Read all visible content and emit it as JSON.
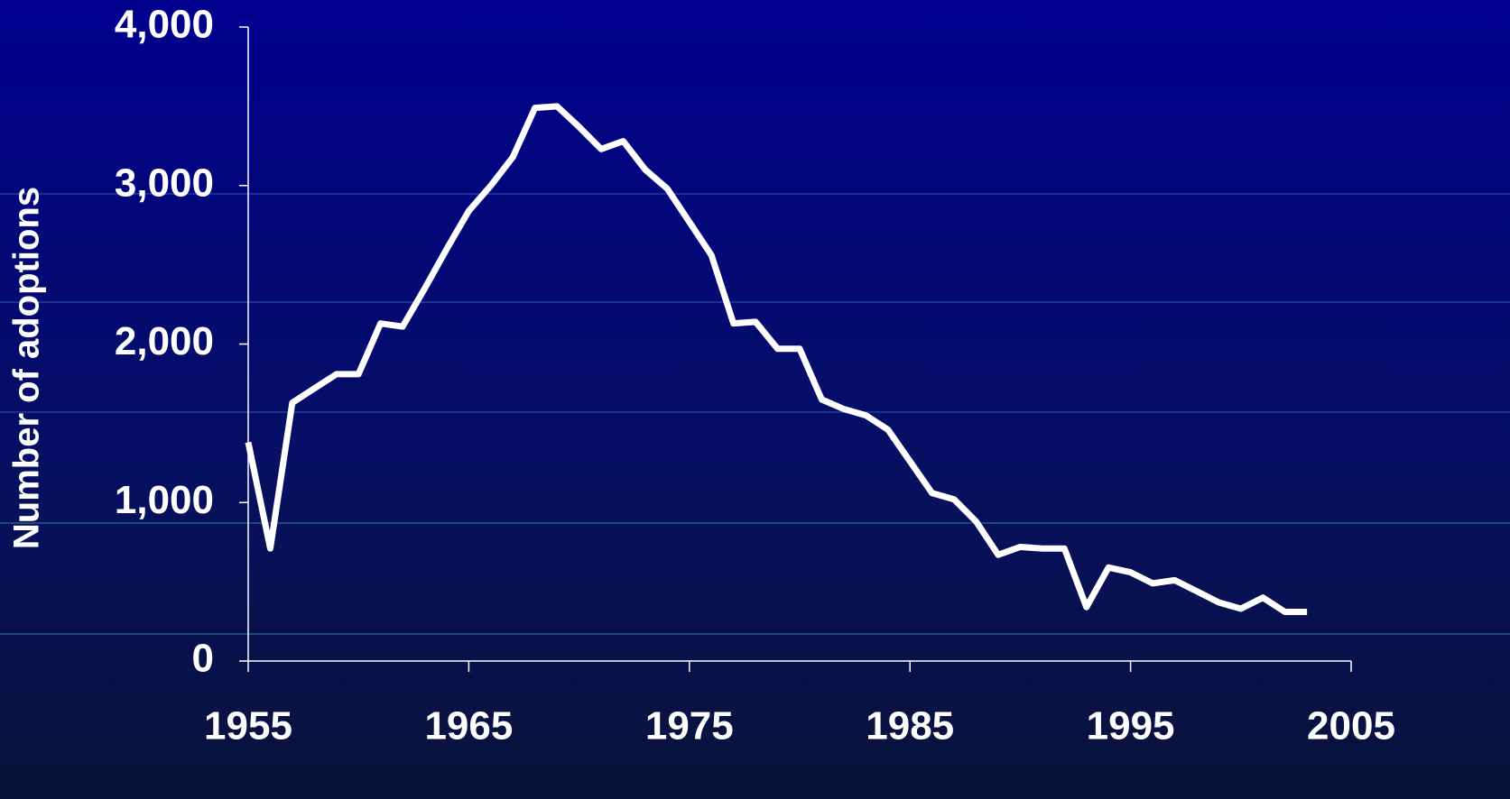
{
  "chart_data": {
    "type": "line",
    "ylabel": "Number of adoptions",
    "x": [
      1955,
      1956,
      1957,
      1958,
      1959,
      1960,
      1961,
      1962,
      1963,
      1964,
      1965,
      1966,
      1967,
      1968,
      1969,
      1970,
      1971,
      1972,
      1973,
      1974,
      1975,
      1976,
      1977,
      1978,
      1979,
      1980,
      1981,
      1982,
      1983,
      1984,
      1985,
      1986,
      1987,
      1988,
      1989,
      1990,
      1991,
      1992,
      1993,
      1994,
      1995,
      1996,
      1997,
      1998,
      1999,
      2000,
      2001,
      2002,
      2003
    ],
    "series": [
      {
        "name": "Adoptions",
        "color": "#ffffff",
        "values": [
          1380,
          710,
          1630,
          1720,
          1810,
          1810,
          2130,
          2110,
          2350,
          2600,
          2840,
          3000,
          3180,
          3490,
          3500,
          3370,
          3230,
          3280,
          3100,
          2980,
          2770,
          2560,
          2130,
          2140,
          1970,
          1970,
          1650,
          1590,
          1550,
          1460,
          1260,
          1060,
          1020,
          880,
          670,
          720,
          710,
          710,
          340,
          590,
          560,
          490,
          510,
          440,
          370,
          330,
          400,
          310,
          310
        ]
      }
    ],
    "xlim": [
      1955,
      2005
    ],
    "xticks": [
      1955,
      1965,
      1975,
      1985,
      1995,
      2005
    ],
    "ylim": [
      0,
      4000
    ],
    "yticks": [
      0,
      {
        "value": 1000,
        "label": "1,000"
      },
      {
        "value": 2000,
        "label": "2,000"
      },
      {
        "value": 3000,
        "label": "3,000"
      },
      {
        "value": 4000,
        "label": "4,000"
      }
    ]
  }
}
